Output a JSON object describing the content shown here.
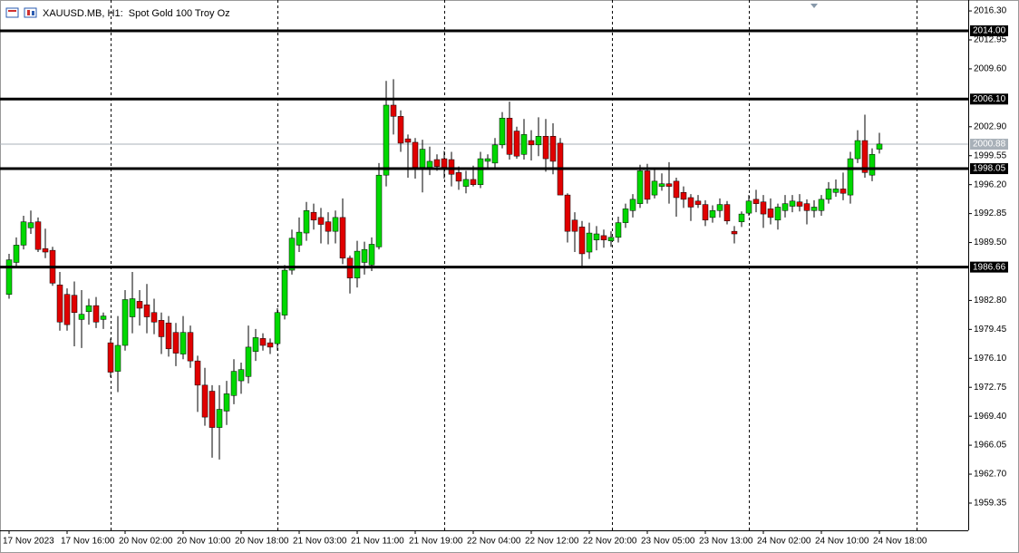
{
  "chart_data": {
    "type": "candlestick",
    "title": "XAUUSD.MB, H1:  Spot Gold 100 Troy Oz",
    "categories": [
      "17 Nov 2023",
      null,
      null,
      null,
      null,
      null,
      null,
      null,
      "17 Nov 16:00",
      null,
      null,
      null,
      null,
      null,
      null,
      null,
      "20 Nov 02:00",
      null,
      null,
      null,
      null,
      null,
      null,
      null,
      "20 Nov 10:00",
      null,
      null,
      null,
      null,
      null,
      null,
      null,
      "20 Nov 18:00",
      null,
      null,
      null,
      null,
      null,
      null,
      null,
      "21 Nov 03:00",
      null,
      null,
      null,
      null,
      null,
      null,
      null,
      "21 Nov 11:00",
      null,
      null,
      null,
      null,
      null,
      null,
      null,
      "21 Nov 19:00",
      null,
      null,
      null,
      null,
      null,
      null,
      null,
      "22 Nov 04:00",
      null,
      null,
      null,
      null,
      null,
      null,
      null,
      "22 Nov 12:00",
      null,
      null,
      null,
      null,
      null,
      null,
      null,
      "22 Nov 20:00",
      null,
      null,
      null,
      null,
      null,
      null,
      null,
      "23 Nov 05:00",
      null,
      null,
      null,
      null,
      null,
      null,
      null,
      "23 Nov 13:00",
      null,
      null,
      null,
      null,
      null,
      null,
      null,
      "24 Nov 02:00",
      null,
      null,
      null,
      null,
      null,
      null,
      null,
      "24 Nov 10:00",
      null,
      null,
      null,
      null,
      null,
      null,
      null,
      "24 Nov 18:00"
    ],
    "open": [
      1983.5,
      1987.2,
      1989.2,
      1991.2,
      1991.9,
      1988.8,
      1988.6,
      1984.6,
      1983.5,
      1983.4,
      1980.6,
      1981.5,
      1982.2,
      1980.6,
      1977.9,
      1974.6,
      1977.6,
      1980.9,
      1982.7,
      1982.3,
      1981.4,
      1980.5,
      1980.2,
      1979.1,
      1976.6,
      1979.1,
      1975.8,
      1973.0,
      1972.3,
      1968.1,
      1970.0,
      1971.8,
      1973.5,
      1974.0,
      1976.9,
      1978.4,
      1977.9,
      1977.8,
      1981.1,
      1986.3,
      1989.2,
      1990.6,
      1993.0,
      1992.4,
      1991.9,
      1990.8,
      1992.4,
      1987.7,
      1985.4,
      1987.2,
      1986.9,
      1989.0,
      1997.3,
      2005.4,
      2004.1,
      2001.5,
      2001.1,
      1998.2,
      1998.2,
      1999.1,
      1999.2,
      1999.1,
      1997.6,
      1996.0,
      1996.8,
      1996.2,
      1998.9,
      1998.7,
      2000.8,
      2003.9,
      2002.4,
      1999.7,
      2001.3,
      2000.8,
      2001.8,
      2001.8,
      2001.0,
      1995.0,
      1992.1,
      1991.3,
      1988.4,
      1989.8,
      1990.3,
      1989.7,
      1990.1,
      1991.8,
      1993.2,
      1994.0,
      1997.8,
      1995.0,
      1996.0,
      1996.3,
      1996.6,
      1995.3,
      1994.7,
      1994.3,
      1993.9,
      1992.4,
      1993.2,
      1993.9,
      1990.8,
      1991.9,
      1992.9,
      1994.5,
      1994.2,
      1993.4,
      1992.1,
      1993.2,
      1993.7,
      1994.2,
      1994.0,
      1993.2,
      1993.2,
      1994.5,
      1995.3,
      1995.7,
      1995.0,
      1999.2,
      2001.3,
      1997.3,
      2000.3
    ],
    "high": [
      1988.2,
      1990.1,
      1992.6,
      1993.2,
      1992.4,
      1991.1,
      1989.0,
      1986.1,
      1984.2,
      1985.0,
      1984.0,
      1983.0,
      1983.2,
      1981.4,
      1978.4,
      1981.0,
      1984.0,
      1986.1,
      1984.0,
      1984.7,
      1983.0,
      1981.4,
      1981.0,
      1980.2,
      1981.0,
      1979.9,
      1976.4,
      1975.0,
      1973.0,
      1973.0,
      1973.5,
      1976.0,
      1975.6,
      1979.9,
      1979.5,
      1979.0,
      1978.4,
      1981.9,
      1986.9,
      1991.0,
      1992.4,
      1994.2,
      1994.0,
      1993.5,
      1993.0,
      1993.2,
      1994.6,
      1988.0,
      1989.7,
      1989.6,
      1990.1,
      1998.7,
      2008.2,
      2008.4,
      2004.8,
      2002.0,
      2001.6,
      2001.4,
      2000.6,
      1999.7,
      2000.1,
      2000.0,
      1998.3,
      1997.8,
      1998.4,
      2000.0,
      1999.7,
      2001.6,
      2004.6,
      2005.8,
      2002.9,
      2003.8,
      2002.5,
      2004.0,
      2003.8,
      2003.3,
      2001.6,
      1995.2,
      1993.0,
      1992.0,
      1991.8,
      1991.4,
      1991.0,
      1990.8,
      1992.5,
      1994.0,
      1995.1,
      1998.5,
      1998.6,
      1998.0,
      1997.5,
      1998.8,
      1997.0,
      1996.0,
      1995.1,
      1995.0,
      1994.4,
      1993.8,
      1994.6,
      1994.3,
      1991.4,
      1993.1,
      1995.0,
      1995.6,
      1995.0,
      1994.6,
      1994.0,
      1995.0,
      1995.0,
      1995.1,
      1994.5,
      1994.4,
      1995.0,
      1996.5,
      1996.8,
      1997.6,
      2000.0,
      2002.5,
      2004.3,
      2000.4,
      2002.2
    ],
    "low": [
      1983.0,
      1986.6,
      1988.7,
      1990.5,
      1988.4,
      1987.7,
      1984.5,
      1979.3,
      1979.3,
      1977.5,
      1977.3,
      1980.0,
      1979.6,
      1979.5,
      1973.9,
      1972.2,
      1977.0,
      1979.0,
      1979.9,
      1979.0,
      1978.9,
      1976.6,
      1976.3,
      1975.2,
      1976.0,
      1975.0,
      1969.9,
      1968.3,
      1964.6,
      1964.4,
      1968.4,
      1970.8,
      1972.0,
      1973.2,
      1975.8,
      1977.0,
      1976.6,
      1977.0,
      1980.6,
      1985.8,
      1988.4,
      1989.7,
      1991.0,
      1989.4,
      1989.3,
      1989.4,
      1987.0,
      1983.6,
      1984.3,
      1985.8,
      1986.2,
      1988.7,
      1996.0,
      2002.0,
      2000.0,
      1997.0,
      1996.9,
      1995.3,
      1997.3,
      1997.8,
      1996.9,
      1996.0,
      1995.6,
      1995.2,
      1996.0,
      1995.8,
      1998.0,
      1998.0,
      2000.4,
      1999.1,
      1999.2,
      1999.1,
      1999.0,
      1999.5,
      1997.7,
      1997.4,
      1995.0,
      1989.5,
      1988.4,
      1986.5,
      1987.6,
      1988.6,
      1988.9,
      1989.0,
      1989.5,
      1991.2,
      1992.4,
      1993.5,
      1994.0,
      1994.6,
      1995.5,
      1994.0,
      1992.5,
      1993.5,
      1992.0,
      1993.5,
      1991.4,
      1991.8,
      1992.4,
      1991.6,
      1989.4,
      1991.3,
      1992.6,
      1993.0,
      1991.2,
      1991.6,
      1991.0,
      1992.4,
      1993.0,
      1993.1,
      1991.6,
      1992.4,
      1992.6,
      1994.0,
      1994.8,
      1994.4,
      1994.0,
      1998.7,
      1997.0,
      1996.6,
      1999.8
    ],
    "close": [
      1987.5,
      1989.2,
      1991.9,
      1991.8,
      1988.7,
      1988.4,
      1984.8,
      1980.3,
      1980.0,
      1981.4,
      1981.2,
      1982.2,
      1980.3,
      1981.0,
      1974.5,
      1977.6,
      1982.9,
      1983.0,
      1981.9,
      1980.9,
      1980.3,
      1978.6,
      1977.2,
      1976.7,
      1979.1,
      1975.8,
      1973.0,
      1969.3,
      1968.1,
      1970.2,
      1972.0,
      1974.6,
      1974.8,
      1977.4,
      1978.5,
      1977.6,
      1977.4,
      1981.4,
      1986.3,
      1990.0,
      1990.7,
      1993.2,
      1992.1,
      1991.6,
      1990.8,
      1992.4,
      1987.7,
      1985.4,
      1988.5,
      1988.7,
      1989.3,
      1997.3,
      2005.4,
      2004.1,
      2001.0,
      2001.1,
      1998.2,
      2000.3,
      1998.9,
      1998.3,
      1998.2,
      1997.4,
      1996.6,
      1996.8,
      1996.2,
      1999.2,
      1999.2,
      2000.8,
      2003.9,
      1999.7,
      1999.5,
      2002.0,
      2000.8,
      2001.8,
      1999.2,
      1998.9,
      1995.0,
      1990.8,
      1990.8,
      1988.2,
      1990.6,
      1990.5,
      1989.8,
      1990.1,
      1991.8,
      1993.4,
      1994.5,
      1997.8,
      1994.5,
      1996.6,
      1996.3,
      1996.0,
      1994.7,
      1994.5,
      1993.6,
      1993.9,
      1992.1,
      1993.2,
      1993.9,
      1992.0,
      1990.5,
      1992.8,
      1994.3,
      1994.0,
      1992.8,
      1992.4,
      1993.6,
      1994.0,
      1994.3,
      1993.7,
      1993.2,
      1993.6,
      1994.5,
      1995.7,
      1995.7,
      1995.2,
      1999.2,
      2001.3,
      1997.6,
      1999.7,
      2000.9
    ],
    "up_color": "#00d800",
    "down_color": "#e00000",
    "ylim": [
      1956.2,
      2017.25
    ],
    "yticks": [
      {
        "value": 2016.3,
        "label": "2016.30"
      },
      {
        "value": 2012.95,
        "label": "2012.95"
      },
      {
        "value": 2009.6,
        "label": "2009.60"
      },
      {
        "value": 2002.9,
        "label": "2002.90"
      },
      {
        "value": 1999.55,
        "label": "1999.55"
      },
      {
        "value": 1996.2,
        "label": "1996.20"
      },
      {
        "value": 1992.85,
        "label": "1992.85"
      },
      {
        "value": 1989.5,
        "label": "1989.50"
      },
      {
        "value": 1982.8,
        "label": "1982.80"
      },
      {
        "value": 1979.45,
        "label": "1979.45"
      },
      {
        "value": 1976.1,
        "label": "1976.10"
      },
      {
        "value": 1972.75,
        "label": "1972.75"
      },
      {
        "value": 1969.4,
        "label": "1969.40"
      },
      {
        "value": 1966.05,
        "label": "1966.05"
      },
      {
        "value": 1962.7,
        "label": "1962.70"
      },
      {
        "value": 1959.35,
        "label": "1959.35"
      }
    ],
    "levels": [
      {
        "value": 2014.0,
        "label": "2014.00"
      },
      {
        "value": 2006.1,
        "label": "2006.10"
      },
      {
        "value": 1998.05,
        "label": "1998.05"
      },
      {
        "value": 1986.66,
        "label": "1986.66"
      }
    ],
    "price": {
      "value": 2000.88,
      "label": "2000.88"
    }
  }
}
